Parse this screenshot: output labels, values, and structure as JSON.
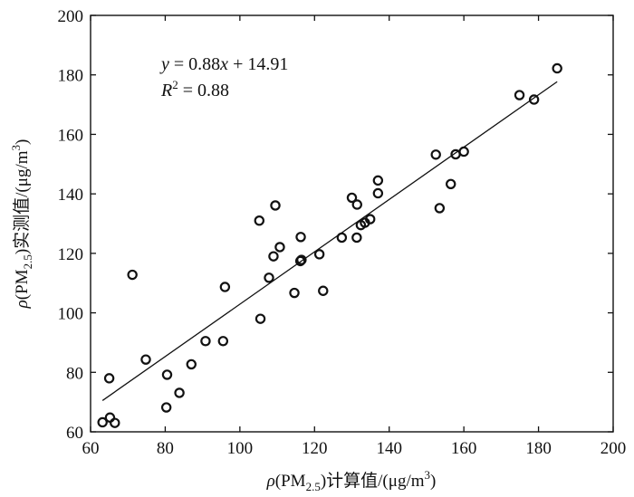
{
  "chart_data": {
    "type": "scatter",
    "title": "",
    "xlabel": {
      "rho": "ρ",
      "open": "(PM",
      "sub": "2.5",
      "close": ")计算值/(μg/m",
      "sup": "3",
      "end": ")"
    },
    "ylabel": {
      "rho": "ρ",
      "open": "(PM",
      "sub": "2.5",
      "close": ")实测值/(μg/m",
      "sup": "3",
      "end": ")"
    },
    "xlim": [
      60,
      200
    ],
    "ylim": [
      60,
      200
    ],
    "xticks": [
      60,
      80,
      100,
      120,
      140,
      160,
      180,
      200
    ],
    "yticks": [
      60,
      80,
      100,
      120,
      140,
      160,
      180,
      200
    ],
    "grid": false,
    "annotation": {
      "equation": "y = 0.88x + 14.91",
      "r2": "R² = 0.88",
      "r2_parts": {
        "r": "R",
        "sup": "2",
        "rest": " = 0.88"
      },
      "eq_parts": {
        "y": "y",
        "mid": " = 0.88",
        "x": "x",
        "rest": " + 14.91"
      }
    },
    "fit_line": {
      "slope": 0.88,
      "intercept": 14.91,
      "x_range": [
        63.2,
        185
      ]
    },
    "points": [
      [
        63.2,
        63.2
      ],
      [
        65.2,
        64.8
      ],
      [
        66.5,
        63.0
      ],
      [
        65.0,
        78.0
      ],
      [
        71.2,
        112.8
      ],
      [
        74.8,
        84.3
      ],
      [
        80.3,
        68.2
      ],
      [
        80.5,
        79.2
      ],
      [
        83.8,
        73.1
      ],
      [
        87.0,
        82.7
      ],
      [
        90.8,
        90.5
      ],
      [
        95.5,
        90.5
      ],
      [
        96.0,
        108.7
      ],
      [
        105.2,
        131.0
      ],
      [
        105.5,
        98.0
      ],
      [
        107.8,
        111.8
      ],
      [
        109.0,
        119.0
      ],
      [
        109.5,
        136.1
      ],
      [
        110.7,
        122.1
      ],
      [
        114.6,
        106.7
      ],
      [
        116.2,
        117.4
      ],
      [
        116.3,
        125.5
      ],
      [
        116.5,
        117.8
      ],
      [
        121.3,
        119.7
      ],
      [
        122.3,
        107.4
      ],
      [
        127.3,
        125.3
      ],
      [
        130.0,
        138.7
      ],
      [
        131.3,
        125.3
      ],
      [
        131.4,
        136.4
      ],
      [
        132.4,
        129.5
      ],
      [
        133.5,
        130.3
      ],
      [
        134.9,
        131.5
      ],
      [
        137.0,
        140.2
      ],
      [
        137.0,
        144.5
      ],
      [
        152.5,
        153.2
      ],
      [
        153.5,
        135.2
      ],
      [
        156.5,
        143.3
      ],
      [
        157.8,
        153.3
      ],
      [
        160.0,
        154.2
      ],
      [
        174.9,
        173.2
      ],
      [
        178.8,
        171.7
      ],
      [
        185.0,
        182.2
      ]
    ]
  }
}
